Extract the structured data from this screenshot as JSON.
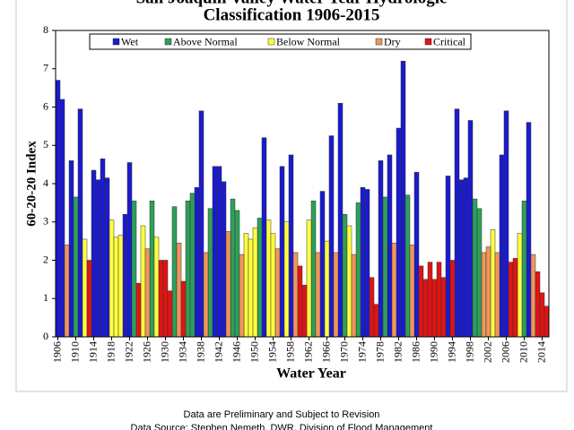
{
  "chart_data": {
    "type": "bar",
    "title": "San Joaquin Valley Water Year Hydrologic",
    "subtitle": "Classification  1906-2015",
    "ylabel": "60-20-20 Index",
    "xlabel": "Water Year",
    "xlim": [
      1905.5,
      2015.5
    ],
    "xticks": [
      1906,
      1910,
      1914,
      1918,
      1922,
      1926,
      1930,
      1934,
      1938,
      1942,
      1946,
      1950,
      1954,
      1958,
      1962,
      1966,
      1970,
      1974,
      1978,
      1982,
      1986,
      1990,
      1994,
      1998,
      2002,
      2006,
      2010,
      2014
    ],
    "ylim": [
      0,
      8
    ],
    "yticks": [
      0,
      1,
      2,
      3,
      4,
      5,
      6,
      7,
      8
    ],
    "legend": "top",
    "grid": false,
    "series": [
      {
        "name": "Wet",
        "color": "#1a1ad0",
        "x": [
          1906,
          1907,
          1909,
          1911,
          1914,
          1915,
          1916,
          1917,
          1921,
          1922,
          1937,
          1938,
          1941,
          1942,
          1943,
          1952,
          1956,
          1958,
          1965,
          1967,
          1969,
          1974,
          1975,
          1978,
          1980,
          1982,
          1983,
          1986,
          1993,
          1995,
          1996,
          1997,
          1998,
          2005,
          2006,
          2011
        ],
        "values": [
          6.7,
          6.2,
          4.6,
          5.95,
          4.35,
          4.1,
          4.65,
          4.15,
          3.2,
          4.55,
          3.9,
          5.9,
          4.45,
          4.45,
          4.05,
          5.2,
          4.45,
          4.75,
          3.8,
          5.25,
          6.1,
          3.9,
          3.85,
          4.6,
          4.75,
          5.45,
          7.2,
          4.3,
          4.2,
          5.95,
          4.1,
          4.15,
          5.65,
          4.75,
          5.9,
          5.6
        ]
      },
      {
        "name": "Above Normal",
        "color": "#2ea05a",
        "x": [
          1910,
          1923,
          1927,
          1932,
          1935,
          1936,
          1940,
          1945,
          1946,
          1951,
          1963,
          1970,
          1973,
          1979,
          1984,
          1999,
          2000,
          2010
        ],
        "values": [
          3.65,
          3.55,
          3.55,
          3.4,
          3.55,
          3.75,
          3.35,
          3.6,
          3.3,
          3.1,
          3.55,
          3.2,
          3.5,
          3.65,
          3.7,
          3.6,
          3.35,
          3.55
        ]
      },
      {
        "name": "Below Normal",
        "color": "#ffff40",
        "x": [
          1912,
          1918,
          1919,
          1920,
          1925,
          1928,
          1948,
          1949,
          1950,
          1953,
          1954,
          1957,
          1962,
          1966,
          1971,
          2003,
          2009
        ],
        "values": [
          2.55,
          3.05,
          2.6,
          2.65,
          2.9,
          2.6,
          2.7,
          2.55,
          2.85,
          3.05,
          2.7,
          3.0,
          3.05,
          2.5,
          2.9,
          2.8,
          2.7
        ]
      },
      {
        "name": "Dry",
        "color": "#f0965a",
        "x": [
          1908,
          1926,
          1933,
          1939,
          1944,
          1947,
          1955,
          1959,
          1964,
          1968,
          1972,
          1981,
          1985,
          2001,
          2002,
          2004,
          2012
        ],
        "values": [
          2.4,
          2.3,
          2.45,
          2.2,
          2.75,
          2.15,
          2.3,
          2.2,
          2.2,
          2.2,
          2.15,
          2.45,
          2.4,
          2.2,
          2.35,
          2.2,
          2.15
        ]
      },
      {
        "name": "Critical",
        "color": "#e01414",
        "x": [
          1913,
          1924,
          1929,
          1930,
          1931,
          1934,
          1960,
          1961,
          1976,
          1977,
          1987,
          1988,
          1989,
          1990,
          1991,
          1992,
          1994,
          2007,
          2008,
          2013,
          2014,
          2015
        ],
        "values": [
          2.0,
          1.4,
          2.0,
          2.0,
          1.2,
          1.45,
          1.85,
          1.35,
          1.55,
          0.85,
          1.85,
          1.5,
          1.95,
          1.5,
          1.95,
          1.55,
          2.0,
          1.95,
          2.05,
          1.7,
          1.15,
          0.8
        ]
      }
    ],
    "notes": [
      "Data are Preliminary and Subject to Revision",
      "Data Source: Stephen Nemeth, DWR, Division of Flood Management"
    ]
  }
}
